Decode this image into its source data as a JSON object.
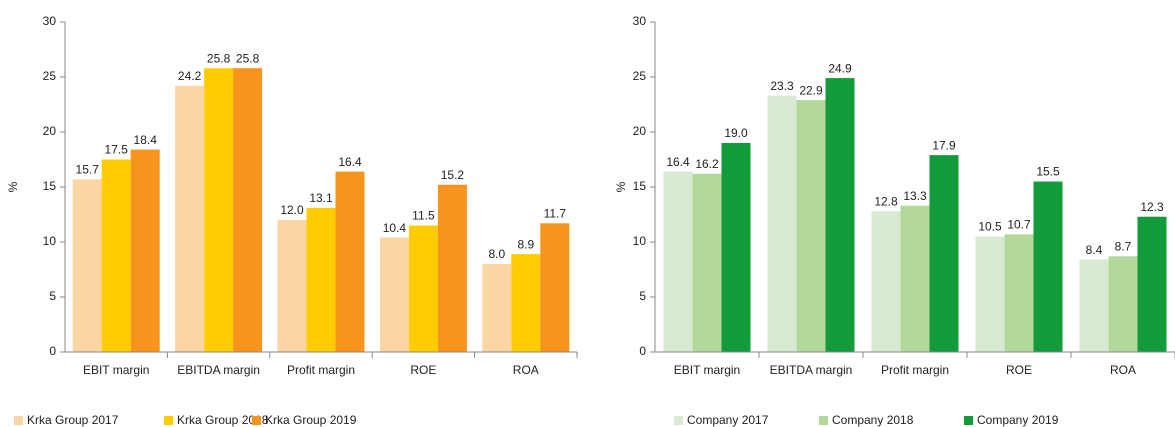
{
  "chart_data": [
    {
      "type": "bar",
      "y_label": "%",
      "categories": [
        "EBIT margin",
        "EBITDA margin",
        "Profit margin",
        "ROE",
        "ROA"
      ],
      "series": [
        {
          "name": "Krka Group 2017",
          "color": "#fcd5a5",
          "values": [
            15.7,
            24.2,
            12.0,
            10.4,
            8.0
          ],
          "value_labels": [
            "15.7",
            "24.2",
            "12.0",
            "10.4",
            "8.0"
          ]
        },
        {
          "name": "Krka Group 2018",
          "color": "#ffcc00",
          "values": [
            17.5,
            25.8,
            13.1,
            11.5,
            8.9
          ],
          "value_labels": [
            "17.5",
            "25.8",
            "13.1",
            "11.5",
            "8.9"
          ]
        },
        {
          "name": "Krka Group 2019",
          "color": "#f7941d",
          "values": [
            18.4,
            25.8,
            16.4,
            15.2,
            11.7
          ],
          "value_labels": [
            "18.4",
            "25.8",
            "16.4",
            "15.2",
            "11.7"
          ]
        }
      ],
      "ylim": [
        0,
        30
      ],
      "yticks": [
        0,
        5,
        10,
        15,
        20,
        25,
        30
      ],
      "grid": false,
      "legend": "bottom"
    },
    {
      "type": "bar",
      "y_label": "%",
      "categories": [
        "EBIT margin",
        "EBITDA margin",
        "Profit margin",
        "ROE",
        "ROA"
      ],
      "series": [
        {
          "name": "Company 2017",
          "color": "#d9ead3",
          "values": [
            16.4,
            23.3,
            12.8,
            10.5,
            8.4
          ],
          "value_labels": [
            "16.4",
            "23.3",
            "12.8",
            "10.5",
            "8.4"
          ]
        },
        {
          "name": "Company 2018",
          "color": "#b3d89c",
          "values": [
            16.2,
            22.9,
            13.3,
            10.7,
            8.7
          ],
          "value_labels": [
            "16.2",
            "22.9",
            "13.3",
            "10.7",
            "8.7"
          ]
        },
        {
          "name": "Company 2019",
          "color": "#139a3b",
          "values": [
            19.0,
            24.9,
            17.9,
            15.5,
            12.3
          ],
          "value_labels": [
            "19.0",
            "24.9",
            "17.9",
            "15.5",
            "12.3"
          ]
        }
      ],
      "ylim": [
        0,
        30
      ],
      "yticks": [
        0,
        5,
        10,
        15,
        20,
        25,
        30
      ],
      "grid": false,
      "legend": "bottom"
    }
  ]
}
